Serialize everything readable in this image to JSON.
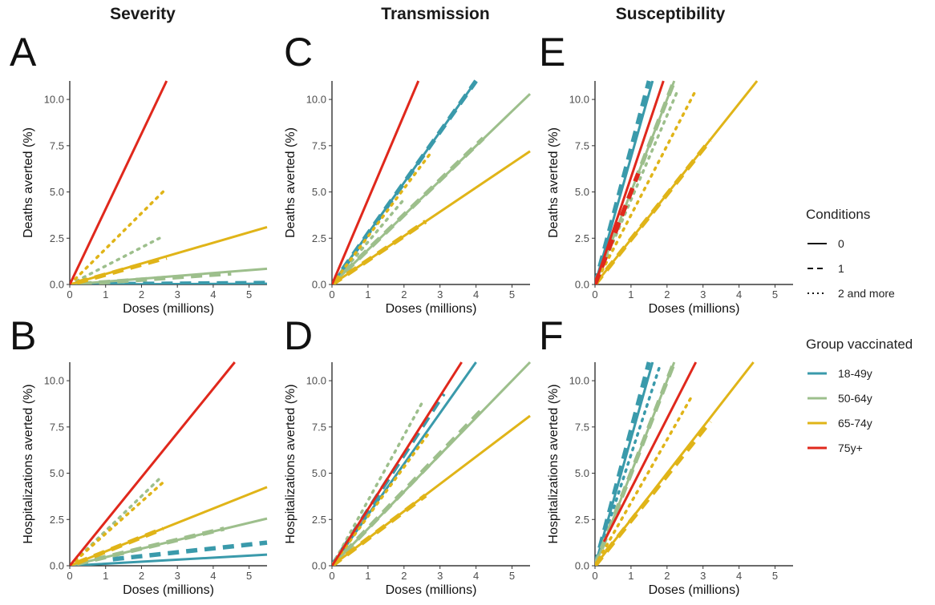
{
  "column_titles": [
    "Severity",
    "Transmission",
    "Susceptibility"
  ],
  "panel_labels": [
    "A",
    "B",
    "C",
    "D",
    "E",
    "F"
  ],
  "legend": {
    "conditions_title": "Conditions",
    "conditions": [
      {
        "label": "0",
        "dash": "solid"
      },
      {
        "label": "1",
        "dash": "dashed"
      },
      {
        "label": "2 and more",
        "dash": "dotted"
      }
    ],
    "groups_title": "Group vaccinated",
    "groups": [
      {
        "label": "18-49y",
        "color": "#3a9aab"
      },
      {
        "label": "50-64y",
        "color": "#9dbf8c"
      },
      {
        "label": "65-74y",
        "color": "#e0b418"
      },
      {
        "label": "75y+",
        "color": "#e0281c"
      }
    ]
  },
  "chart_data": [
    {
      "panel": "A",
      "type": "line",
      "xlabel": "Doses (millions)",
      "ylabel": "Deaths averted (%)",
      "xlim": [
        0,
        5.5
      ],
      "ylim": [
        0,
        11
      ],
      "xticks": [
        "0",
        "1",
        "2",
        "3",
        "4",
        "5"
      ],
      "yticks": [
        "0.0",
        "2.5",
        "5.0",
        "7.5",
        "10.0"
      ],
      "series": [
        {
          "group": "18-49y",
          "condition": "0",
          "x": [
            0,
            5.5
          ],
          "y": [
            0,
            0.04
          ]
        },
        {
          "group": "18-49y",
          "condition": "1",
          "x": [
            0.5,
            5.5
          ],
          "y": [
            0.01,
            0.08
          ]
        },
        {
          "group": "50-64y",
          "condition": "0",
          "x": [
            0,
            5.5
          ],
          "y": [
            0,
            0.85
          ]
        },
        {
          "group": "50-64y",
          "condition": "1",
          "x": [
            0.3,
            4.5
          ],
          "y": [
            0.03,
            0.6
          ]
        },
        {
          "group": "50-64y",
          "condition": "2 and more",
          "x": [
            0,
            2.5
          ],
          "y": [
            0,
            2.5
          ]
        },
        {
          "group": "65-74y",
          "condition": "0",
          "x": [
            0,
            5.5
          ],
          "y": [
            0,
            3.1
          ]
        },
        {
          "group": "65-74y",
          "condition": "1",
          "x": [
            0.2,
            2.7
          ],
          "y": [
            0.1,
            1.45
          ]
        },
        {
          "group": "65-74y",
          "condition": "2 and more",
          "x": [
            0,
            2.7
          ],
          "y": [
            0,
            5.2
          ]
        },
        {
          "group": "75y+",
          "condition": "0",
          "x": [
            0,
            2.7
          ],
          "y": [
            0,
            11
          ]
        }
      ]
    },
    {
      "panel": "B",
      "type": "line",
      "xlabel": "Doses (millions)",
      "ylabel": "Hospitalizations averted (%)",
      "xlim": [
        0,
        5.5
      ],
      "ylim": [
        0,
        11
      ],
      "xticks": [
        "0",
        "1",
        "2",
        "3",
        "4",
        "5"
      ],
      "yticks": [
        "0.0",
        "2.5",
        "5.0",
        "7.5",
        "10.0"
      ],
      "series": [
        {
          "group": "18-49y",
          "condition": "0",
          "x": [
            0,
            5.5
          ],
          "y": [
            0,
            0.6
          ]
        },
        {
          "group": "18-49y",
          "condition": "1",
          "x": [
            1.2,
            5.5
          ],
          "y": [
            0.35,
            1.25
          ]
        },
        {
          "group": "50-64y",
          "condition": "0",
          "x": [
            0,
            5.5
          ],
          "y": [
            0,
            2.55
          ]
        },
        {
          "group": "50-64y",
          "condition": "1",
          "x": [
            0.2,
            4.3
          ],
          "y": [
            0.1,
            2.0
          ]
        },
        {
          "group": "50-64y",
          "condition": "2 and more",
          "x": [
            0,
            2.5
          ],
          "y": [
            0,
            4.7
          ]
        },
        {
          "group": "65-74y",
          "condition": "0",
          "x": [
            0,
            5.5
          ],
          "y": [
            0,
            4.25
          ]
        },
        {
          "group": "65-74y",
          "condition": "1",
          "x": [
            0.2,
            2.6
          ],
          "y": [
            0.15,
            2.0
          ]
        },
        {
          "group": "65-74y",
          "condition": "2 and more",
          "x": [
            0,
            2.6
          ],
          "y": [
            0,
            4.5
          ]
        },
        {
          "group": "75y+",
          "condition": "0",
          "x": [
            0,
            4.6
          ],
          "y": [
            0,
            11
          ]
        }
      ]
    },
    {
      "panel": "C",
      "type": "line",
      "xlabel": "Doses (millions)",
      "ylabel": "Deaths averted (%)",
      "xlim": [
        0,
        5.5
      ],
      "ylim": [
        0,
        11
      ],
      "xticks": [
        "0",
        "1",
        "2",
        "3",
        "4",
        "5"
      ],
      "yticks": [
        "0.0",
        "2.5",
        "5.0",
        "7.5",
        "10.0"
      ],
      "series": [
        {
          "group": "18-49y",
          "condition": "0",
          "x": [
            0,
            4.0
          ],
          "y": [
            0,
            11
          ]
        },
        {
          "group": "18-49y",
          "condition": "1",
          "x": [
            0,
            4.0
          ],
          "y": [
            0,
            11
          ]
        },
        {
          "group": "50-64y",
          "condition": "0",
          "x": [
            0,
            5.5
          ],
          "y": [
            0,
            10.3
          ]
        },
        {
          "group": "50-64y",
          "condition": "1",
          "x": [
            0,
            4.2
          ],
          "y": [
            0,
            7.9
          ]
        },
        {
          "group": "50-64y",
          "condition": "2 and more",
          "x": [
            0,
            2.0
          ],
          "y": [
            0,
            4.6
          ]
        },
        {
          "group": "65-74y",
          "condition": "0",
          "x": [
            0,
            5.5
          ],
          "y": [
            0,
            7.2
          ]
        },
        {
          "group": "65-74y",
          "condition": "1",
          "x": [
            0,
            2.6
          ],
          "y": [
            0,
            3.4
          ]
        },
        {
          "group": "65-74y",
          "condition": "2 and more",
          "x": [
            0,
            2.7
          ],
          "y": [
            0,
            7.0
          ]
        },
        {
          "group": "75y+",
          "condition": "0",
          "x": [
            0,
            2.4
          ],
          "y": [
            0,
            11
          ]
        }
      ]
    },
    {
      "panel": "D",
      "type": "line",
      "xlabel": "Doses (millions)",
      "ylabel": "Hospitalizations averted (%)",
      "xlim": [
        0,
        5.5
      ],
      "ylim": [
        0,
        11
      ],
      "xticks": [
        "0",
        "1",
        "2",
        "3",
        "4",
        "5"
      ],
      "yticks": [
        "0.0",
        "2.5",
        "5.0",
        "7.5",
        "10.0"
      ],
      "series": [
        {
          "group": "18-49y",
          "condition": "0",
          "x": [
            0,
            4.0
          ],
          "y": [
            0,
            11
          ]
        },
        {
          "group": "18-49y",
          "condition": "1",
          "x": [
            0,
            3.1
          ],
          "y": [
            0,
            9.3
          ]
        },
        {
          "group": "50-64y",
          "condition": "0",
          "x": [
            0,
            5.5
          ],
          "y": [
            0,
            11
          ]
        },
        {
          "group": "50-64y",
          "condition": "1",
          "x": [
            0,
            4.2
          ],
          "y": [
            0,
            8.5
          ]
        },
        {
          "group": "50-64y",
          "condition": "2 and more",
          "x": [
            0,
            2.5
          ],
          "y": [
            0,
            8.8
          ]
        },
        {
          "group": "65-74y",
          "condition": "0",
          "x": [
            0,
            5.5
          ],
          "y": [
            0,
            8.1
          ]
        },
        {
          "group": "65-74y",
          "condition": "1",
          "x": [
            0,
            2.6
          ],
          "y": [
            0,
            3.8
          ]
        },
        {
          "group": "65-74y",
          "condition": "2 and more",
          "x": [
            0,
            2.7
          ],
          "y": [
            0,
            7.2
          ]
        },
        {
          "group": "75y+",
          "condition": "0",
          "x": [
            0,
            3.6
          ],
          "y": [
            0,
            11
          ]
        }
      ]
    },
    {
      "panel": "E",
      "type": "line",
      "xlabel": "Doses (millions)",
      "ylabel": "Deaths averted (%)",
      "xlim": [
        0,
        5.5
      ],
      "ylim": [
        0,
        11
      ],
      "xticks": [
        "0",
        "1",
        "2",
        "3",
        "4",
        "5"
      ],
      "yticks": [
        "0.0",
        "2.5",
        "5.0",
        "7.5",
        "10.0"
      ],
      "series": [
        {
          "group": "18-49y",
          "condition": "0",
          "x": [
            0,
            1.6
          ],
          "y": [
            0,
            11
          ]
        },
        {
          "group": "18-49y",
          "condition": "1",
          "x": [
            0,
            1.5
          ],
          "y": [
            0,
            11
          ]
        },
        {
          "group": "50-64y",
          "condition": "0",
          "x": [
            0,
            2.2
          ],
          "y": [
            0,
            11
          ]
        },
        {
          "group": "50-64y",
          "condition": "1",
          "x": [
            0,
            2.2
          ],
          "y": [
            0,
            11
          ]
        },
        {
          "group": "50-64y",
          "condition": "2 and more",
          "x": [
            0,
            2.3
          ],
          "y": [
            0,
            10.5
          ]
        },
        {
          "group": "65-74y",
          "condition": "0",
          "x": [
            0,
            4.5
          ],
          "y": [
            0,
            11
          ]
        },
        {
          "group": "65-74y",
          "condition": "1",
          "x": [
            0,
            3.2
          ],
          "y": [
            0,
            7.8
          ]
        },
        {
          "group": "65-74y",
          "condition": "2 and more",
          "x": [
            0,
            2.8
          ],
          "y": [
            0,
            10.5
          ]
        },
        {
          "group": "75y+",
          "condition": "0",
          "x": [
            0,
            1.9
          ],
          "y": [
            0,
            11
          ]
        },
        {
          "group": "75y+",
          "condition": "1",
          "x": [
            0,
            1.2
          ],
          "y": [
            0,
            6.0
          ]
        }
      ]
    },
    {
      "panel": "F",
      "type": "line",
      "xlabel": "Doses (millions)",
      "ylabel": "Hospitalizations averted (%)",
      "xlim": [
        0,
        5.5
      ],
      "ylim": [
        0,
        11
      ],
      "xticks": [
        "0",
        "1",
        "2",
        "3",
        "4",
        "5"
      ],
      "yticks": [
        "0.0",
        "2.5",
        "5.0",
        "7.5",
        "10.0"
      ],
      "series": [
        {
          "group": "18-49y",
          "condition": "0",
          "x": [
            0,
            1.6
          ],
          "y": [
            0,
            11
          ]
        },
        {
          "group": "18-49y",
          "condition": "1",
          "x": [
            0,
            1.5
          ],
          "y": [
            0,
            11
          ]
        },
        {
          "group": "18-49y",
          "condition": "2 and more",
          "x": [
            0,
            1.8
          ],
          "y": [
            0,
            10.8
          ]
        },
        {
          "group": "50-64y",
          "condition": "0",
          "x": [
            0,
            2.2
          ],
          "y": [
            0,
            11
          ]
        },
        {
          "group": "50-64y",
          "condition": "1",
          "x": [
            0,
            2.2
          ],
          "y": [
            0,
            11
          ]
        },
        {
          "group": "65-74y",
          "condition": "0",
          "x": [
            0,
            4.4
          ],
          "y": [
            0,
            11
          ]
        },
        {
          "group": "65-74y",
          "condition": "1",
          "x": [
            0,
            3.2
          ],
          "y": [
            0,
            7.8
          ]
        },
        {
          "group": "65-74y",
          "condition": "2 and more",
          "x": [
            0,
            2.7
          ],
          "y": [
            0,
            9.2
          ]
        },
        {
          "group": "75y+",
          "condition": "0",
          "x": [
            0.25,
            2.8
          ],
          "y": [
            1.3,
            11
          ]
        }
      ]
    }
  ]
}
